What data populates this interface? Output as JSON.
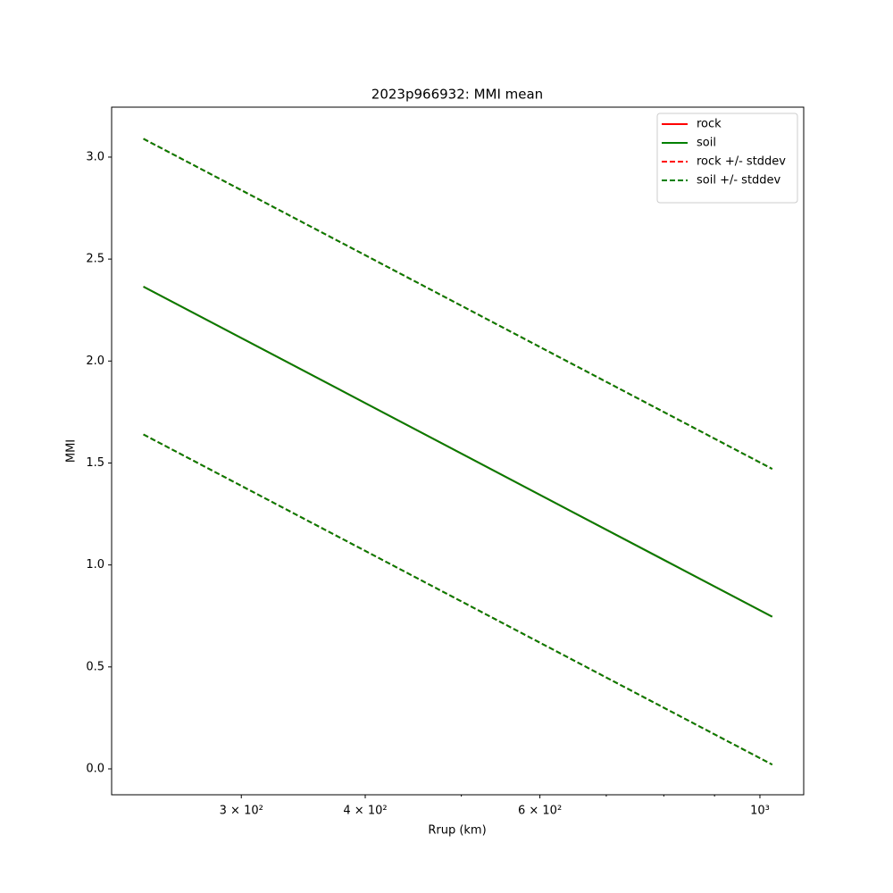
{
  "chart_data": {
    "type": "line",
    "title": "2023p966932: MMI mean",
    "x_label": "Rrup (km)",
    "y_label": "MMI",
    "xscale": "log",
    "x": [
      239,
      300,
      400,
      600,
      800,
      1029
    ],
    "series": [
      {
        "name": "rock",
        "color": "#ff0000",
        "dash": false,
        "values": [
          2.365,
          2.113,
          1.794,
          1.344,
          1.025,
          0.746
        ]
      },
      {
        "name": "soil",
        "color": "#008000",
        "dash": false,
        "values": [
          2.365,
          2.113,
          1.794,
          1.344,
          1.025,
          0.746
        ]
      },
      {
        "name": "rock +/- stddev",
        "color": "#ff0000",
        "dash": true,
        "upper": [
          3.09,
          2.838,
          2.519,
          2.069,
          1.75,
          1.471
        ],
        "lower": [
          1.64,
          1.388,
          1.069,
          0.619,
          0.3,
          0.021
        ]
      },
      {
        "name": "soil +/- stddev",
        "color": "#008000",
        "dash": true,
        "upper": [
          3.09,
          2.838,
          2.519,
          2.069,
          1.75,
          1.471
        ],
        "lower": [
          1.64,
          1.388,
          1.069,
          0.619,
          0.3,
          0.021
        ]
      }
    ],
    "xlim": [
      222,
      1107
    ],
    "ylim": [
      -0.127,
      3.245
    ],
    "xticks": [
      {
        "value": 300,
        "label": "3 × 10²"
      },
      {
        "value": 400,
        "label": "4 × 10²"
      },
      {
        "value": 600,
        "label": "6 × 10²"
      },
      {
        "value": 1000,
        "label": "10³"
      }
    ],
    "xminorticks": [
      500,
      700,
      800,
      900
    ],
    "yticks": [
      {
        "value": 0,
        "label": "0.0"
      },
      0.5,
      {
        "value": 1,
        "label": "1.0"
      },
      1.5,
      {
        "value": 2,
        "label": "2.0"
      },
      2.5,
      {
        "value": 3,
        "label": "3.0"
      }
    ],
    "legend": "upper right",
    "grid": false
  }
}
